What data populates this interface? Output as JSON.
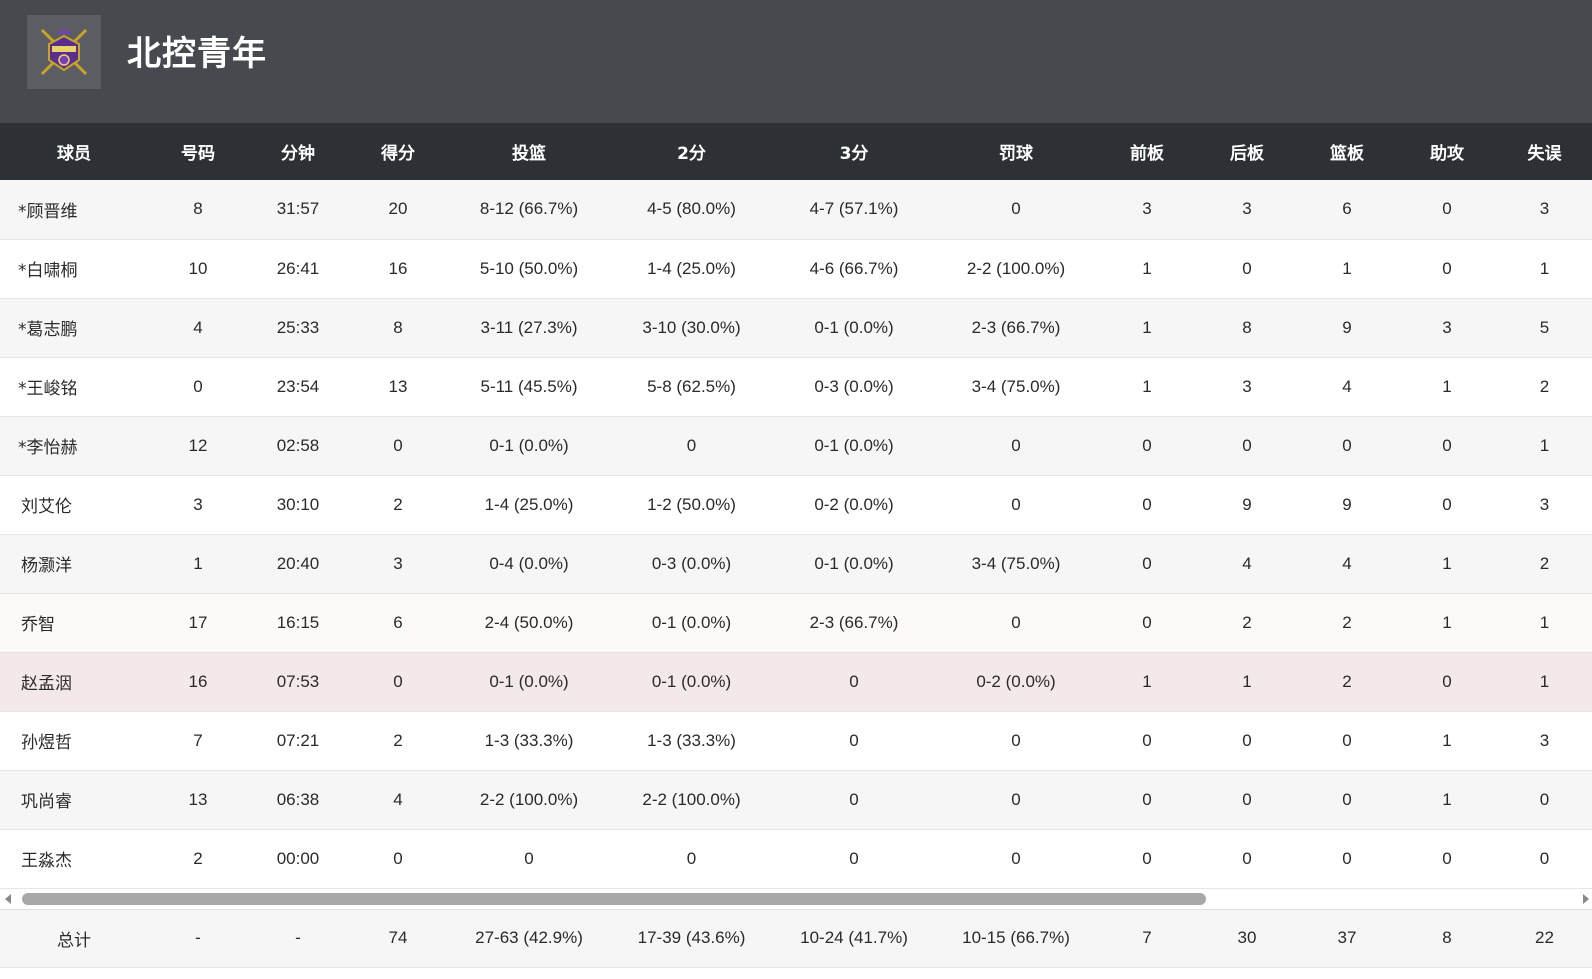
{
  "team": {
    "name": "北控青年",
    "logo_icon": "royal-fighters-crest-icon"
  },
  "columns": [
    "球员",
    "号码",
    "分钟",
    "得分",
    "投篮",
    "2分",
    "3分",
    "罚球",
    "前板",
    "后板",
    "篮板",
    "助攻",
    "失误"
  ],
  "players": [
    {
      "name": "*顾晋维",
      "number": "8",
      "minutes": "31:57",
      "points": "20",
      "fg": "8-12 (66.7%)",
      "two": "4-5 (80.0%)",
      "three": "4-7 (57.1%)",
      "ft": "0",
      "oreb": "3",
      "dreb": "3",
      "reb": "6",
      "ast": "0",
      "tov": "3"
    },
    {
      "name": "*白啸桐",
      "number": "10",
      "minutes": "26:41",
      "points": "16",
      "fg": "5-10 (50.0%)",
      "two": "1-4 (25.0%)",
      "three": "4-6 (66.7%)",
      "ft": "2-2 (100.0%)",
      "oreb": "1",
      "dreb": "0",
      "reb": "1",
      "ast": "0",
      "tov": "1"
    },
    {
      "name": "*葛志鹏",
      "number": "4",
      "minutes": "25:33",
      "points": "8",
      "fg": "3-11 (27.3%)",
      "two": "3-10 (30.0%)",
      "three": "0-1 (0.0%)",
      "ft": "2-3 (66.7%)",
      "oreb": "1",
      "dreb": "8",
      "reb": "9",
      "ast": "3",
      "tov": "5"
    },
    {
      "name": "*王峻铭",
      "number": "0",
      "minutes": "23:54",
      "points": "13",
      "fg": "5-11 (45.5%)",
      "two": "5-8 (62.5%)",
      "three": "0-3 (0.0%)",
      "ft": "3-4 (75.0%)",
      "oreb": "1",
      "dreb": "3",
      "reb": "4",
      "ast": "1",
      "tov": "2"
    },
    {
      "name": "*李怡赫",
      "number": "12",
      "minutes": "02:58",
      "points": "0",
      "fg": "0-1 (0.0%)",
      "two": "0",
      "three": "0-1 (0.0%)",
      "ft": "0",
      "oreb": "0",
      "dreb": "0",
      "reb": "0",
      "ast": "0",
      "tov": "1"
    },
    {
      "name": "刘艾伦",
      "number": "3",
      "minutes": "30:10",
      "points": "2",
      "fg": "1-4 (25.0%)",
      "two": "1-2 (50.0%)",
      "three": "0-2 (0.0%)",
      "ft": "0",
      "oreb": "0",
      "dreb": "9",
      "reb": "9",
      "ast": "0",
      "tov": "3"
    },
    {
      "name": "杨灏洋",
      "number": "1",
      "minutes": "20:40",
      "points": "3",
      "fg": "0-4 (0.0%)",
      "two": "0-3 (0.0%)",
      "three": "0-1 (0.0%)",
      "ft": "3-4 (75.0%)",
      "oreb": "0",
      "dreb": "4",
      "reb": "4",
      "ast": "1",
      "tov": "2"
    },
    {
      "name": "乔智",
      "number": "17",
      "minutes": "16:15",
      "points": "6",
      "fg": "2-4 (50.0%)",
      "two": "0-1 (0.0%)",
      "three": "2-3 (66.7%)",
      "ft": "0",
      "oreb": "0",
      "dreb": "2",
      "reb": "2",
      "ast": "1",
      "tov": "1"
    },
    {
      "name": "赵孟洇",
      "number": "16",
      "minutes": "07:53",
      "points": "0",
      "fg": "0-1 (0.0%)",
      "two": "0-1 (0.0%)",
      "three": "0",
      "ft": "0-2 (0.0%)",
      "oreb": "1",
      "dreb": "1",
      "reb": "2",
      "ast": "0",
      "tov": "1"
    },
    {
      "name": "孙煜哲",
      "number": "7",
      "minutes": "07:21",
      "points": "2",
      "fg": "1-3 (33.3%)",
      "two": "1-3 (33.3%)",
      "three": "0",
      "ft": "0",
      "oreb": "0",
      "dreb": "0",
      "reb": "0",
      "ast": "1",
      "tov": "3"
    },
    {
      "name": "巩尚睿",
      "number": "13",
      "minutes": "06:38",
      "points": "4",
      "fg": "2-2 (100.0%)",
      "two": "2-2 (100.0%)",
      "three": "0",
      "ft": "0",
      "oreb": "0",
      "dreb": "0",
      "reb": "0",
      "ast": "1",
      "tov": "0"
    },
    {
      "name": "王淼杰",
      "number": "2",
      "minutes": "00:00",
      "points": "0",
      "fg": "0",
      "two": "0",
      "three": "0",
      "ft": "0",
      "oreb": "0",
      "dreb": "0",
      "reb": "0",
      "ast": "0",
      "tov": "0"
    }
  ],
  "totals": {
    "name": "总计",
    "number": "-",
    "minutes": "-",
    "points": "74",
    "fg": "27-63 (42.9%)",
    "two": "17-39 (43.6%)",
    "three": "10-24 (41.7%)",
    "ft": "10-15 (66.7%)",
    "oreb": "7",
    "dreb": "30",
    "reb": "37",
    "ast": "8",
    "tov": "22"
  }
}
